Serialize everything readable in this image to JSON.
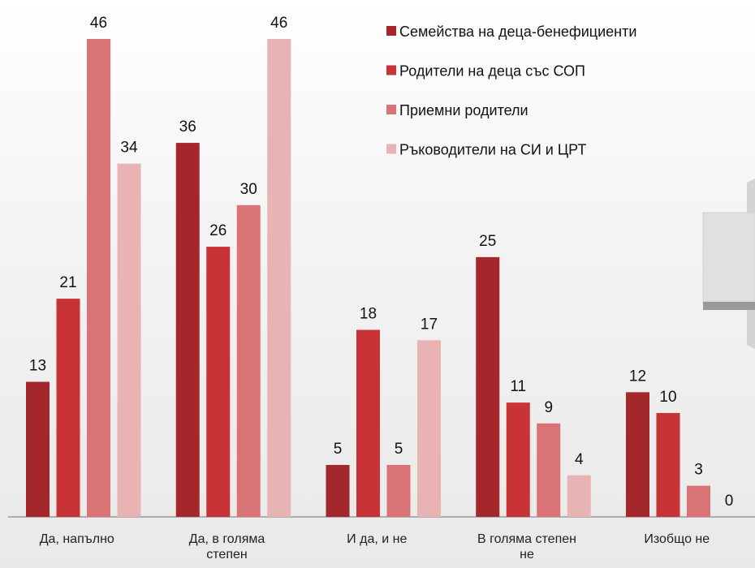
{
  "chart_data": {
    "type": "bar",
    "categories": [
      "Да, напълно",
      "Да, в голяма степен",
      "И да, и не",
      "В голяма степен не",
      "Изобщо не"
    ],
    "series": [
      {
        "name": "Семейства на деца-бенефициенти",
        "color": "#a4282b",
        "values": [
          13,
          36,
          5,
          25,
          12
        ]
      },
      {
        "name": "Родители на деца със СОП",
        "color": "#c73336",
        "values": [
          21,
          26,
          18,
          11,
          10
        ]
      },
      {
        "name": "Приемни родители",
        "color": "#d97376",
        "values": [
          46,
          30,
          5,
          9,
          3
        ]
      },
      {
        "name": "Ръководители на СИ и ЦРТ",
        "color": "#e9b3b4",
        "values": [
          34,
          46,
          17,
          4,
          0
        ]
      }
    ],
    "ylim": [
      0,
      46
    ],
    "legend": "upper right"
  }
}
